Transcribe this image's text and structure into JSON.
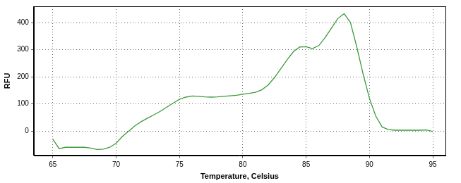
{
  "chart_data": {
    "type": "line",
    "x_label": "Temperature, Celsius",
    "y_label": "RFU",
    "x": [
      65,
      65.5,
      66,
      67,
      67.5,
      68,
      68.5,
      69,
      69.5,
      70,
      70.5,
      71,
      71.5,
      72,
      72.5,
      73,
      73.5,
      74,
      74.5,
      75,
      75.5,
      76,
      76.5,
      77,
      77.5,
      78,
      78.5,
      79,
      79.5,
      80,
      80.5,
      81,
      81.5,
      82,
      82.5,
      83,
      83.5,
      84,
      84.5,
      85,
      85.5,
      86,
      86.5,
      87,
      87.5,
      88,
      88.5,
      89,
      89.5,
      90,
      90.5,
      91,
      91.5,
      92,
      93,
      94,
      94.5,
      95
    ],
    "values": [
      -30,
      -65,
      -60,
      -60,
      -60,
      -63,
      -68,
      -67,
      -60,
      -45,
      -20,
      0,
      20,
      35,
      48,
      60,
      73,
      88,
      103,
      117,
      125,
      129,
      128,
      126,
      125,
      126,
      128,
      130,
      132,
      136,
      139,
      143,
      152,
      170,
      197,
      230,
      263,
      293,
      310,
      311,
      304,
      315,
      345,
      380,
      415,
      433,
      400,
      310,
      210,
      120,
      55,
      15,
      5,
      3,
      3,
      3,
      4,
      -2
    ],
    "color": "#3c9b3c",
    "xlim": [
      63.5,
      96
    ],
    "xticks": [
      65,
      70,
      75,
      80,
      85,
      90,
      95
    ],
    "ylim": [
      -90,
      460
    ],
    "yticks": [
      0,
      100,
      200,
      300,
      400
    ],
    "grid": true
  }
}
